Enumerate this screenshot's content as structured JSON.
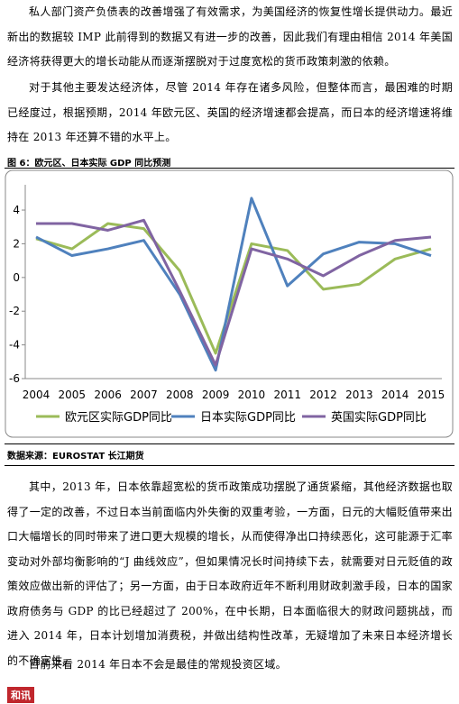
{
  "paragraphs": [
    "私人部门资产负债表的改善增强了有效需求，为美国经济的恢复性增长提供动力。最近新出的数据较 IMP 此前得到的数据又有进一步的改善，因此我们有理由相信 2014 年美国经济将获得更大的增长动能从而逐渐摆脱对于过度宽松的货币政策刺激的依赖。",
    "对于其他主要发达经济体，尽管 2014 年存在诸多风险，但整体而言，最困难的时期已经度过，根据预期，2014 年欧元区、英国的经济增速都会提高，而日本的经济增速将维持在 2013 年还算不错的水平上。"
  ],
  "figure": {
    "caption": "图 6：欧元区、日本实际 GDP 同比预测",
    "source": "数据来源：EUROSTAT 长江期货"
  },
  "chart_data": {
    "type": "line",
    "categories": [
      "2004",
      "2005",
      "2006",
      "2007",
      "2008",
      "2009",
      "2010",
      "2011",
      "2012",
      "2013",
      "2014",
      "2015"
    ],
    "series": [
      {
        "name": "欧元区实际GDP同比",
        "color": "#9bbb59",
        "values": [
          2.3,
          1.7,
          3.2,
          2.9,
          0.4,
          -4.5,
          2.0,
          1.6,
          -0.7,
          -0.4,
          1.1,
          1.7
        ]
      },
      {
        "name": "日本实际GDP同比",
        "color": "#4f81bd",
        "values": [
          2.4,
          1.3,
          1.7,
          2.2,
          -1.0,
          -5.5,
          4.7,
          -0.5,
          1.4,
          2.1,
          2.0,
          1.3
        ]
      },
      {
        "name": "英国实际GDP同比",
        "color": "#8064a2",
        "values": [
          3.2,
          3.2,
          2.8,
          3.4,
          -0.8,
          -5.2,
          1.7,
          1.1,
          0.1,
          1.3,
          2.2,
          2.4
        ]
      }
    ],
    "ylim": [
      -6,
      5.5
    ],
    "yticks": [
      -6,
      -4,
      -2,
      0,
      2,
      4
    ],
    "grid": false,
    "legend": "bottom"
  },
  "paragraphs_after": [
    "其中，2013 年，日本依靠超宽松的货币政策成功摆脱了通货紧缩，其他经济数据也取得了一定的改善，不过日本当前面临内外失衡的双重考验，一方面，日元的大幅贬值带来出口大幅增长的同时带来了进口更大规模的增长，从而使得净出口持续恶化，这可能源于汇率变动对外部均衡影响的“J 曲线效应”，但如果情况长时间持续下去，就需要对日元贬值的政策效应做出新的评估了；另一方面，由于日本政府近年不断利用财政刺激手段，日本的国家政府债务与 GDP 的比已经超过了 200%，在中长期，日本面临很大的财政问题挑战，而进入 2014 年，日本计划增加消费税，并做出结构性改革，无疑增加了未来日本经济增长的不确定性。",
    "目前来看 2014 年日本不会是最佳的常规投资区域。"
  ],
  "footer": {
    "logo": "和讯"
  }
}
